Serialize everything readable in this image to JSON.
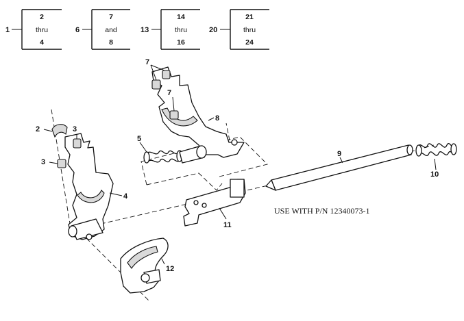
{
  "index_blocks": [
    {
      "index": "1",
      "top": "2",
      "middle": "thru",
      "bottom": "4"
    },
    {
      "index": "6",
      "top": "7",
      "middle": "and",
      "bottom": "8"
    },
    {
      "index": "13",
      "top": "14",
      "middle": "thru",
      "bottom": "16"
    },
    {
      "index": "20",
      "top": "21",
      "middle": "thru",
      "bottom": "24"
    }
  ],
  "callouts": {
    "c2": "2",
    "c3a": "3",
    "c3b": "3",
    "c4": "4",
    "c5": "5",
    "c7a": "7",
    "c7b": "7",
    "c8": "8",
    "c9": "9",
    "c10": "10",
    "c11": "11",
    "c12": "12"
  },
  "note": "USE WITH P/N 12340073-1"
}
